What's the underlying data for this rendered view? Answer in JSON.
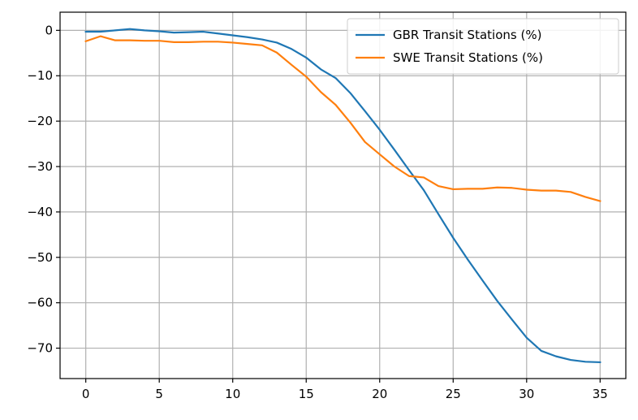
{
  "chart_data": {
    "type": "line",
    "title": "",
    "xlabel": "",
    "ylabel": "",
    "xlim": [
      -1.75,
      36.75
    ],
    "ylim": [
      -76.7,
      4.0
    ],
    "x_ticks": [
      0,
      5,
      10,
      15,
      20,
      25,
      30,
      35
    ],
    "y_ticks": [
      0,
      -10,
      -20,
      -30,
      -40,
      -50,
      -60,
      -70
    ],
    "x_tick_labels": [
      "0",
      "5",
      "10",
      "15",
      "20",
      "25",
      "30",
      "35"
    ],
    "y_tick_labels": [
      "0",
      "−10",
      "−20",
      "−30",
      "−40",
      "−50",
      "−60",
      "−70"
    ],
    "grid": true,
    "legend_position": "top-right",
    "x": [
      0,
      1,
      2,
      3,
      4,
      5,
      6,
      7,
      8,
      9,
      10,
      11,
      12,
      13,
      14,
      15,
      16,
      17,
      18,
      19,
      20,
      21,
      22,
      23,
      24,
      25,
      26,
      27,
      28,
      29,
      30,
      31,
      32,
      33,
      34,
      35
    ],
    "series": [
      {
        "name": "GBR Transit Stations (%)",
        "color": "#1f77b4",
        "values": [
          -0.3,
          -0.3,
          0.0,
          0.3,
          0.0,
          -0.2,
          -0.5,
          -0.4,
          -0.3,
          -0.7,
          -1.1,
          -1.5,
          -2.0,
          -2.7,
          -4.1,
          -6.0,
          -8.6,
          -10.5,
          -13.8,
          -17.8,
          -21.9,
          -26.3,
          -30.8,
          -35.2,
          -40.5,
          -45.7,
          -50.5,
          -55.1,
          -59.6,
          -63.7,
          -67.7,
          -70.6,
          -71.8,
          -72.6,
          -73.0,
          -73.1
        ]
      },
      {
        "name": "SWE Transit Stations (%)",
        "color": "#ff7f0e",
        "values": [
          -2.4,
          -1.3,
          -2.2,
          -2.2,
          -2.3,
          -2.3,
          -2.6,
          -2.6,
          -2.5,
          -2.5,
          -2.7,
          -3.0,
          -3.3,
          -4.9,
          -7.6,
          -10.2,
          -13.6,
          -16.4,
          -20.3,
          -24.6,
          -27.3,
          -30.0,
          -32.1,
          -32.4,
          -34.3,
          -35.0,
          -34.9,
          -34.9,
          -34.6,
          -34.7,
          -35.1,
          -35.3,
          -35.3,
          -35.6,
          -36.7,
          -37.6
        ]
      }
    ]
  }
}
